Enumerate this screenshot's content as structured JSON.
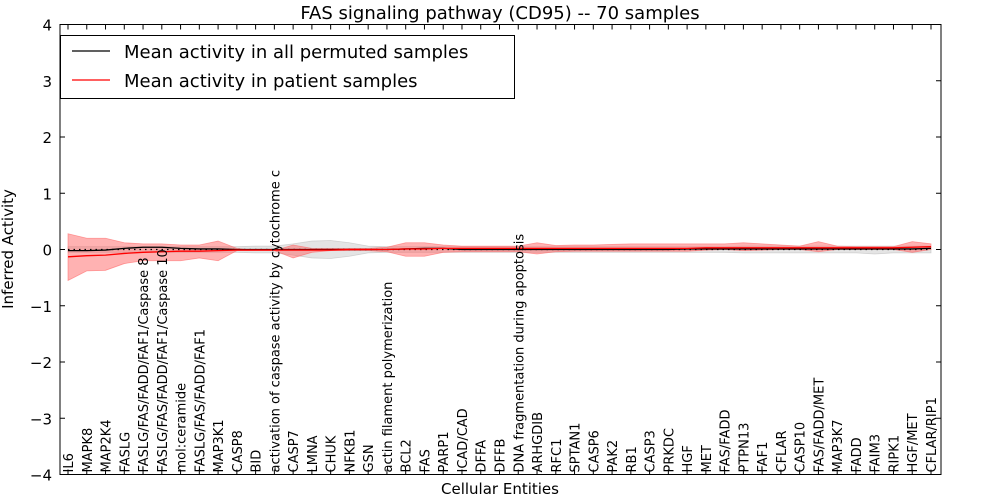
{
  "chart_data": {
    "type": "line",
    "title": "FAS signaling pathway (CD95) -- 70 samples",
    "xlabel": "Cellular Entities",
    "ylabel": "Inferred Activity",
    "ylim": [
      -4,
      4
    ],
    "yticks": [
      -4,
      -3,
      -2,
      -1,
      0,
      1,
      2,
      3,
      4
    ],
    "ytick_labels": [
      "−4",
      "−3",
      "−2",
      "−1",
      "0",
      "1",
      "2",
      "3",
      "4"
    ],
    "legend_position": "top-left",
    "categories": [
      "IL6",
      "MAPK8",
      "MAP2K4",
      "FASLG",
      "FASLG/FAS/FADD/FAF1/Caspase 8",
      "FASLG/FAS/FADD/FAF1/Caspase 10",
      "mol:ceramide",
      "FASLG/FAS/FADD/FAF1",
      "MAP3K1",
      "CASP8",
      "BID",
      "activation of caspase activity by cytochrome c",
      "CASP7",
      "LMNA",
      "CHUK",
      "NFKB1",
      "GSN",
      "actin filament polymerization",
      "BCL2",
      "FAS",
      "PARP1",
      "ICAD/CAD",
      "DFFA",
      "DFFB",
      "DNA fragmentation during apoptosis",
      "ARHGDIB",
      "RFC1",
      "SPTAN1",
      "CASP6",
      "PAK2",
      "RB1",
      "CASP3",
      "PRKDC",
      "HGF",
      "MET",
      "FAS/FADD",
      "PTPN13",
      "FAF1",
      "CFLAR",
      "CASP10",
      "FAS/FADD/MET",
      "MAP3K7",
      "FADD",
      "FAIM3",
      "RIPK1",
      "HGF/MET",
      "CFLAR/RIP1"
    ],
    "series": [
      {
        "name": "Mean activity in all permuted samples",
        "color": "#000000",
        "values": [
          -0.02,
          -0.02,
          -0.01,
          0.02,
          0.04,
          0.04,
          0.02,
          0.01,
          0.01,
          0,
          0,
          0,
          0,
          0,
          0,
          0,
          0,
          0,
          0.01,
          0.02,
          0.02,
          0,
          0,
          0,
          0,
          0,
          0,
          0,
          0,
          0,
          0,
          0,
          0,
          0.01,
          0.01,
          0.01,
          0.01,
          0.01,
          0.01,
          0.01,
          0.01,
          0.01,
          0.01,
          0.01,
          0.01,
          0.01,
          0.02
        ],
        "band_color": "#bbbbbb",
        "band_upper": [
          0.05,
          0.05,
          0.05,
          0.05,
          0.05,
          0.05,
          0.05,
          0.05,
          0.05,
          0.05,
          0.06,
          0.06,
          0.1,
          0.15,
          0.16,
          0.12,
          0.06,
          0.05,
          0.05,
          0.05,
          0.05,
          0.05,
          0.05,
          0.05,
          0.05,
          0.05,
          0.05,
          0.05,
          0.05,
          0.05,
          0.05,
          0.05,
          0.05,
          0.05,
          0.05,
          0.05,
          0.06,
          0.06,
          0.06,
          0.06,
          0.06,
          0.06,
          0.06,
          0.06,
          0.06,
          0.06,
          0.06
        ],
        "band_lower": [
          -0.05,
          -0.05,
          -0.05,
          -0.05,
          -0.05,
          -0.05,
          -0.05,
          -0.05,
          -0.05,
          -0.05,
          -0.06,
          -0.06,
          -0.1,
          -0.15,
          -0.16,
          -0.12,
          -0.06,
          -0.05,
          -0.05,
          -0.05,
          -0.05,
          -0.05,
          -0.05,
          -0.05,
          -0.05,
          -0.05,
          -0.05,
          -0.05,
          -0.05,
          -0.05,
          -0.05,
          -0.05,
          -0.05,
          -0.05,
          -0.05,
          -0.05,
          -0.06,
          -0.06,
          -0.06,
          -0.06,
          -0.06,
          -0.06,
          -0.06,
          -0.08,
          -0.06,
          -0.06,
          -0.06
        ]
      },
      {
        "name": "Mean activity in patient samples",
        "color": "#ff0000",
        "values": [
          -0.13,
          -0.11,
          -0.1,
          -0.07,
          -0.05,
          -0.04,
          -0.03,
          -0.03,
          -0.02,
          -0.01,
          -0.01,
          -0.01,
          -0.01,
          -0.01,
          -0.01,
          0,
          0,
          0,
          0.01,
          0.01,
          0.02,
          0.02,
          0.02,
          0.02,
          0.02,
          0.02,
          0.02,
          0.02,
          0.02,
          0.02,
          0.02,
          0.02,
          0.02,
          0.02,
          0.03,
          0.03,
          0.03,
          0.03,
          0.03,
          0.03,
          0.03,
          0.03,
          0.03,
          0.03,
          0.03,
          0.04,
          0.05
        ],
        "band_color": "#ff6666",
        "band_upper": [
          0.28,
          0.2,
          0.2,
          0.12,
          0.1,
          0.1,
          0.08,
          0.08,
          0.15,
          0.02,
          -0.02,
          -0.02,
          0.08,
          0.02,
          0.02,
          0.02,
          0.02,
          0.04,
          0.12,
          0.12,
          0.08,
          0.06,
          0.06,
          0.06,
          0.06,
          0.12,
          0.07,
          0.08,
          0.08,
          0.09,
          0.1,
          0.1,
          0.1,
          0.1,
          0.1,
          0.1,
          0.12,
          0.1,
          0.08,
          0.06,
          0.14,
          0.06,
          0.05,
          0.05,
          0.05,
          0.14,
          0.1
        ],
        "band_lower": [
          -0.55,
          -0.38,
          -0.37,
          -0.25,
          -0.2,
          -0.2,
          -0.2,
          -0.15,
          -0.2,
          -0.02,
          -0.02,
          -0.02,
          -0.15,
          -0.05,
          -0.02,
          -0.02,
          -0.02,
          -0.04,
          -0.12,
          -0.12,
          -0.05,
          -0.04,
          -0.04,
          -0.04,
          -0.04,
          -0.08,
          -0.04,
          -0.03,
          -0.03,
          -0.03,
          -0.03,
          -0.03,
          -0.03,
          -0.03,
          -0.01,
          0,
          -0.02,
          -0.01,
          0,
          0,
          -0.04,
          0,
          0,
          0,
          0,
          -0.05,
          0
        ]
      }
    ],
    "reference_line": 0
  }
}
